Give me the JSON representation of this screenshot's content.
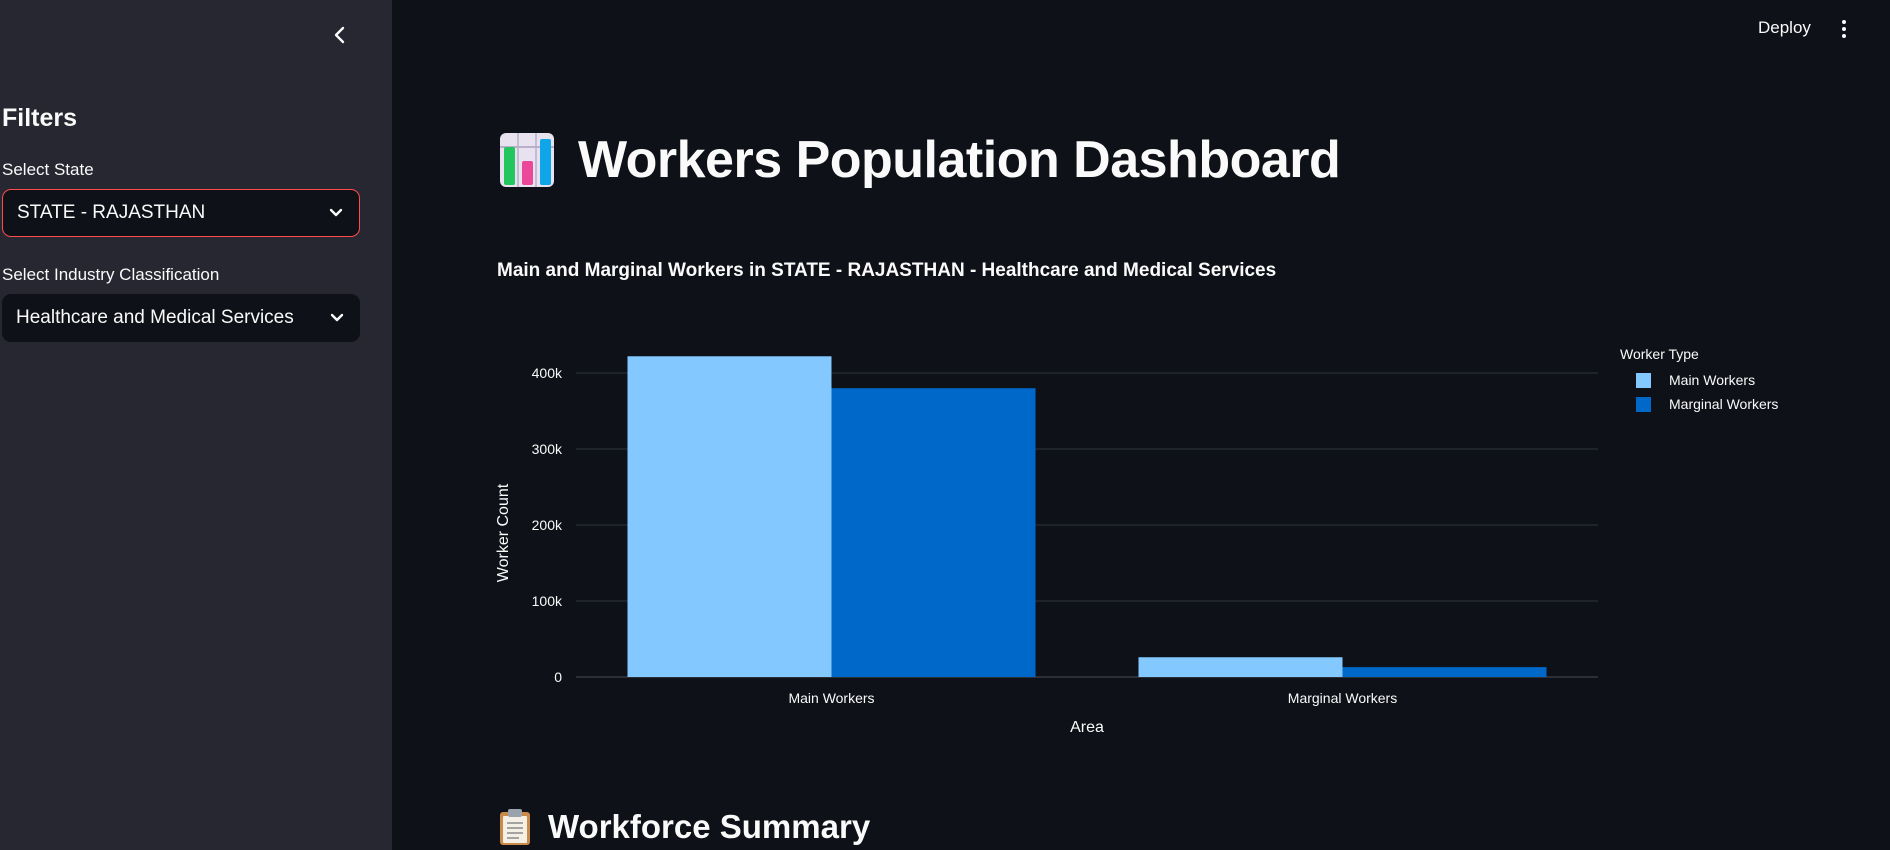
{
  "header": {
    "deploy_label": "Deploy",
    "menu_icon": "kebab-menu-icon"
  },
  "sidebar": {
    "collapse_icon": "chevron-left-icon",
    "title": "Filters",
    "state_label": "Select State",
    "state_value": "STATE - RAJASTHAN",
    "industry_label": "Select Industry Classification",
    "industry_value": "Healthcare and Medical Services",
    "accent_color": "#ff4b4b"
  },
  "main": {
    "title_icon": "bar-chart-icon",
    "title": "Workers Population Dashboard",
    "chart_title": "Main and Marginal Workers in STATE - RAJASTHAN - Healthcare and Medical Services",
    "summary_icon": "clipboard-icon",
    "summary_title": "Workforce Summary"
  },
  "chart_data": {
    "type": "bar",
    "categories": [
      "Main Workers",
      "Marginal Workers"
    ],
    "series": [
      {
        "name": "Main Workers",
        "values": [
          422000,
          26000
        ],
        "color": "#83c9ff"
      },
      {
        "name": "Marginal Workers",
        "values": [
          380000,
          13000
        ],
        "color": "#0068c9"
      }
    ],
    "ylim": [
      0,
      400000
    ],
    "yticks": [
      0,
      100000,
      200000,
      300000,
      400000
    ],
    "ytick_labels": [
      "0",
      "100k",
      "200k",
      "300k",
      "400k"
    ],
    "xlabel": "Area",
    "ylabel": "Worker Count",
    "legend_title": "Worker Type",
    "legend_position": "top-right",
    "grid": true
  }
}
